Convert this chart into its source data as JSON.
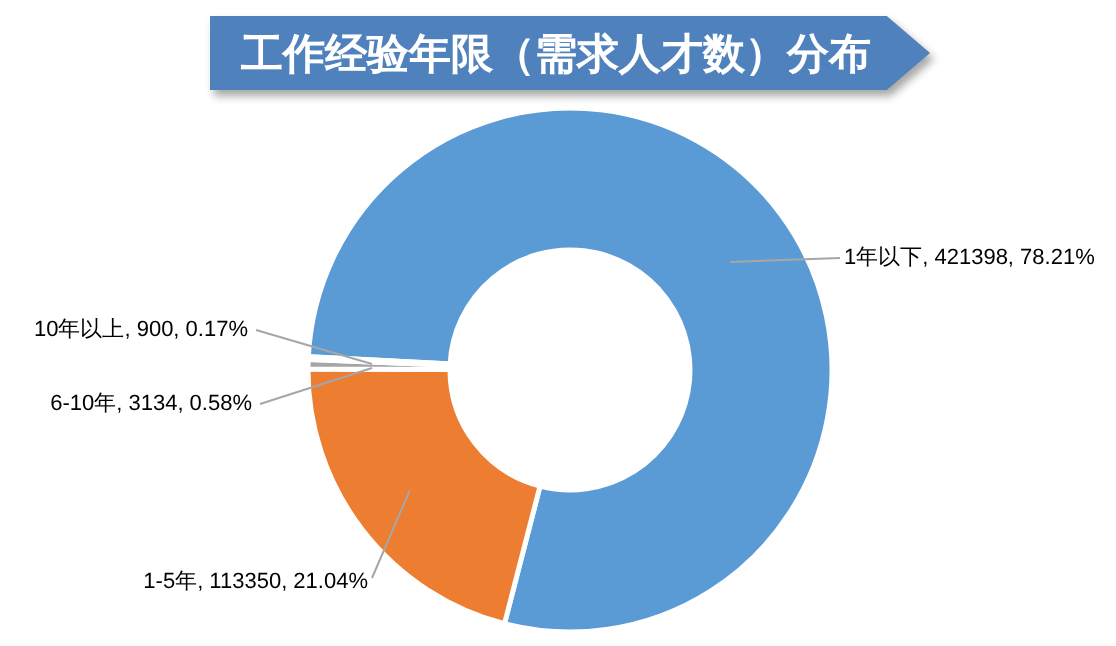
{
  "chart_data": {
    "type": "donut",
    "title": "工作经验年限（需求人才数）分布",
    "categories": [
      "1年以下",
      "1-5年",
      "6-10年",
      "10年以上"
    ],
    "values": [
      421398,
      113350,
      3134,
      900
    ],
    "value_labels": [
      "421398, 78.21%",
      "113350, 21.04%",
      "3134, 0.58%",
      "900, 0.17%"
    ],
    "colors": [
      "#5b9bd5",
      "#ed7d31",
      "#a5a5a5",
      "#ffc000"
    ]
  }
}
